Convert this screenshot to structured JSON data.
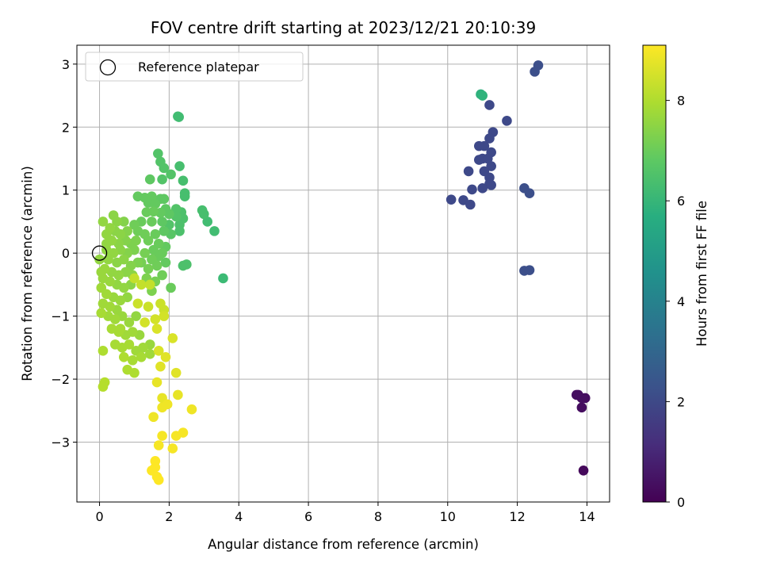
{
  "chart_data": {
    "type": "scatter",
    "title": "FOV centre drift starting at 2023/12/21 20:10:39",
    "xlabel": "Angular distance from reference (arcmin)",
    "ylabel": "Rotation from reference (arcmin)",
    "xlim": [
      -0.65,
      14.65
    ],
    "ylim": [
      -3.95,
      3.3
    ],
    "xticks": [
      0,
      2,
      4,
      6,
      8,
      10,
      12,
      14
    ],
    "yticks": [
      -3,
      -2,
      -1,
      0,
      1,
      2,
      3
    ],
    "grid": true,
    "legend": {
      "placement": "top-left",
      "entries": [
        "Reference platepar"
      ]
    },
    "reference_point": {
      "x": 0,
      "y": 0
    },
    "colorbar": {
      "label": "Hours from first FF file",
      "range": [
        0,
        9.1
      ],
      "ticks": [
        0,
        2,
        4,
        6,
        8
      ],
      "colormap": "viridis"
    },
    "series": [
      {
        "points": [
          [
            13.9,
            -3.45,
            0.2
          ],
          [
            13.85,
            -2.45,
            0.3
          ],
          [
            13.95,
            -2.3,
            0.3
          ],
          [
            13.75,
            -2.25,
            0.3
          ],
          [
            13.85,
            -2.3,
            0.35
          ],
          [
            13.7,
            -2.25,
            0.35
          ],
          [
            12.6,
            2.98,
            2.2
          ],
          [
            12.5,
            2.88,
            2.2
          ],
          [
            12.35,
            0.95,
            2.2
          ],
          [
            12.2,
            1.03,
            2.2
          ],
          [
            12.2,
            -0.28,
            2.2
          ],
          [
            12.35,
            -0.27,
            2.2
          ],
          [
            11.7,
            2.1,
            2.0
          ],
          [
            11.3,
            1.92,
            2.0
          ],
          [
            11.2,
            2.35,
            2.0
          ],
          [
            11.2,
            1.82,
            2.0
          ],
          [
            11.05,
            1.7,
            2.0
          ],
          [
            10.9,
            1.7,
            2.0
          ],
          [
            11.25,
            1.6,
            2.0
          ],
          [
            11.0,
            1.5,
            2.0
          ],
          [
            11.15,
            1.5,
            2.0
          ],
          [
            11.25,
            1.38,
            2.0
          ],
          [
            10.9,
            1.48,
            2.0
          ],
          [
            10.6,
            1.3,
            2.0
          ],
          [
            11.05,
            1.3,
            2.0
          ],
          [
            11.2,
            1.2,
            2.0
          ],
          [
            11.2,
            1.1,
            2.0
          ],
          [
            11.25,
            1.08,
            2.0
          ],
          [
            11.0,
            1.03,
            2.0
          ],
          [
            10.7,
            1.01,
            2.0
          ],
          [
            10.1,
            0.85,
            2.0
          ],
          [
            10.45,
            0.84,
            2.0
          ],
          [
            10.65,
            0.77,
            2.0
          ],
          [
            10.95,
            2.52,
            5.8
          ],
          [
            11.0,
            2.5,
            5.9
          ],
          [
            2.25,
            2.17,
            6.3
          ],
          [
            2.28,
            2.16,
            6.3
          ],
          [
            1.68,
            1.58,
            6.6
          ],
          [
            1.75,
            1.45,
            6.6
          ],
          [
            1.85,
            1.35,
            6.6
          ],
          [
            2.3,
            1.38,
            6.4
          ],
          [
            1.8,
            1.17,
            6.6
          ],
          [
            2.05,
            1.25,
            6.6
          ],
          [
            2.4,
            1.15,
            6.4
          ],
          [
            1.45,
            1.17,
            6.8
          ],
          [
            2.45,
            0.95,
            6.4
          ],
          [
            2.45,
            0.9,
            6.4
          ],
          [
            1.1,
            0.9,
            6.9
          ],
          [
            1.3,
            0.88,
            6.9
          ],
          [
            1.5,
            0.9,
            6.9
          ],
          [
            1.75,
            0.86,
            6.8
          ],
          [
            1.85,
            0.86,
            6.8
          ],
          [
            1.4,
            0.8,
            6.9
          ],
          [
            1.6,
            0.78,
            6.9
          ],
          [
            1.9,
            0.7,
            6.8
          ],
          [
            2.2,
            0.7,
            6.6
          ],
          [
            2.35,
            0.65,
            6.5
          ],
          [
            2.95,
            0.68,
            6.4
          ],
          [
            3.0,
            0.62,
            6.4
          ],
          [
            1.35,
            0.65,
            7.0
          ],
          [
            1.55,
            0.66,
            7.0
          ],
          [
            1.75,
            0.64,
            6.9
          ],
          [
            2.0,
            0.62,
            6.8
          ],
          [
            2.2,
            0.58,
            6.6
          ],
          [
            2.4,
            0.55,
            6.5
          ],
          [
            2.3,
            0.45,
            6.5
          ],
          [
            3.1,
            0.5,
            6.3
          ],
          [
            3.3,
            0.35,
            6.3
          ],
          [
            2.3,
            0.35,
            6.5
          ],
          [
            2.0,
            0.45,
            6.6
          ],
          [
            1.8,
            0.5,
            6.8
          ],
          [
            1.2,
            0.5,
            7.0
          ],
          [
            1.5,
            0.5,
            7.0
          ],
          [
            1.0,
            0.45,
            7.1
          ],
          [
            1.1,
            0.35,
            7.1
          ],
          [
            1.3,
            0.3,
            7.1
          ],
          [
            1.6,
            0.3,
            7.0
          ],
          [
            1.85,
            0.35,
            6.8
          ],
          [
            2.05,
            0.3,
            6.7
          ],
          [
            1.4,
            0.2,
            7.1
          ],
          [
            1.7,
            0.15,
            7.0
          ],
          [
            1.9,
            0.1,
            6.9
          ],
          [
            1.55,
            0.05,
            7.0
          ],
          [
            1.8,
            0.0,
            7.0
          ],
          [
            1.3,
            0.0,
            7.2
          ],
          [
            1.5,
            -0.1,
            7.1
          ],
          [
            1.7,
            -0.05,
            7.0
          ],
          [
            2.4,
            -0.2,
            6.5
          ],
          [
            2.5,
            -0.18,
            6.5
          ],
          [
            1.2,
            -0.15,
            7.2
          ],
          [
            1.4,
            -0.25,
            7.2
          ],
          [
            1.65,
            -0.2,
            7.1
          ],
          [
            1.9,
            -0.15,
            6.9
          ],
          [
            1.35,
            -0.4,
            7.3
          ],
          [
            1.6,
            -0.45,
            7.2
          ],
          [
            1.8,
            -0.35,
            7.1
          ],
          [
            2.05,
            -0.55,
            7.0
          ],
          [
            3.55,
            -0.4,
            6.2
          ],
          [
            1.5,
            -0.6,
            7.3
          ],
          [
            0.1,
            0.5,
            7.6
          ],
          [
            0.3,
            0.4,
            7.6
          ],
          [
            0.4,
            0.6,
            7.5
          ],
          [
            0.5,
            0.5,
            7.5
          ],
          [
            0.7,
            0.5,
            7.4
          ],
          [
            0.2,
            0.3,
            7.6
          ],
          [
            0.45,
            0.35,
            7.5
          ],
          [
            0.6,
            0.3,
            7.5
          ],
          [
            0.8,
            0.35,
            7.4
          ],
          [
            0.35,
            0.2,
            7.6
          ],
          [
            0.55,
            0.15,
            7.5
          ],
          [
            0.75,
            0.2,
            7.4
          ],
          [
            0.9,
            0.15,
            7.3
          ],
          [
            1.05,
            0.2,
            7.3
          ],
          [
            0.2,
            0.05,
            7.6
          ],
          [
            0.4,
            0.0,
            7.6
          ],
          [
            0.6,
            0.05,
            7.5
          ],
          [
            0.8,
            0.0,
            7.4
          ],
          [
            1.0,
            0.05,
            7.3
          ],
          [
            0.25,
            -0.1,
            7.6
          ],
          [
            0.5,
            -0.15,
            7.5
          ],
          [
            0.7,
            -0.1,
            7.5
          ],
          [
            0.9,
            -0.2,
            7.4
          ],
          [
            1.1,
            -0.15,
            7.3
          ],
          [
            0.15,
            -0.25,
            7.7
          ],
          [
            0.35,
            -0.3,
            7.6
          ],
          [
            0.55,
            -0.35,
            7.6
          ],
          [
            0.75,
            -0.3,
            7.5
          ],
          [
            0.95,
            -0.35,
            7.5
          ],
          [
            0.1,
            -0.4,
            7.7
          ],
          [
            0.3,
            -0.45,
            7.7
          ],
          [
            0.5,
            -0.5,
            7.6
          ],
          [
            0.7,
            -0.55,
            7.6
          ],
          [
            0.9,
            -0.5,
            7.5
          ],
          [
            0.05,
            -0.55,
            7.8
          ],
          [
            0.2,
            -0.65,
            7.8
          ],
          [
            0.4,
            -0.7,
            7.7
          ],
          [
            0.6,
            -0.75,
            7.7
          ],
          [
            0.8,
            -0.7,
            7.6
          ],
          [
            0.1,
            -0.8,
            7.8
          ],
          [
            0.3,
            -0.85,
            7.8
          ],
          [
            0.5,
            -0.9,
            7.7
          ],
          [
            0.05,
            -0.95,
            7.9
          ],
          [
            0.25,
            -1.0,
            7.8
          ],
          [
            0.45,
            -1.05,
            7.8
          ],
          [
            0.65,
            -1.0,
            7.7
          ],
          [
            0.85,
            -1.1,
            7.7
          ],
          [
            1.05,
            -1.0,
            7.6
          ],
          [
            0.35,
            -1.2,
            7.9
          ],
          [
            0.55,
            -1.25,
            7.9
          ],
          [
            0.75,
            -1.3,
            7.8
          ],
          [
            0.95,
            -1.25,
            7.8
          ],
          [
            1.15,
            -1.3,
            7.7
          ],
          [
            0.45,
            -1.45,
            7.9
          ],
          [
            0.65,
            -1.5,
            7.9
          ],
          [
            0.85,
            -1.45,
            7.9
          ],
          [
            1.05,
            -1.55,
            7.8
          ],
          [
            1.25,
            -1.5,
            7.8
          ],
          [
            1.45,
            -1.45,
            7.7
          ],
          [
            0.1,
            -1.55,
            8.0
          ],
          [
            0.95,
            -1.7,
            7.9
          ],
          [
            1.2,
            -1.65,
            7.9
          ],
          [
            1.45,
            -1.6,
            7.8
          ],
          [
            0.8,
            -1.85,
            8.0
          ],
          [
            1.0,
            -1.9,
            8.0
          ],
          [
            0.15,
            -2.05,
            8.1
          ],
          [
            0.1,
            -2.12,
            8.1
          ],
          [
            0.7,
            -1.65,
            8.0
          ],
          [
            0.6,
            -1.2,
            7.9
          ],
          [
            0.2,
            0.15,
            7.6
          ],
          [
            0.0,
            -0.1,
            7.6
          ],
          [
            0.05,
            -0.3,
            7.7
          ],
          [
            1.0,
            -0.4,
            8.3
          ],
          [
            1.2,
            -0.5,
            8.3
          ],
          [
            1.45,
            -0.5,
            8.3
          ],
          [
            1.1,
            -0.8,
            8.4
          ],
          [
            1.4,
            -0.85,
            8.4
          ],
          [
            1.75,
            -0.8,
            8.4
          ],
          [
            1.85,
            -0.9,
            8.4
          ],
          [
            1.3,
            -1.1,
            8.5
          ],
          [
            1.6,
            -1.05,
            8.5
          ],
          [
            1.85,
            -1.0,
            8.5
          ],
          [
            1.65,
            -1.2,
            8.6
          ],
          [
            1.7,
            -1.55,
            8.6
          ],
          [
            1.9,
            -1.65,
            8.7
          ],
          [
            1.75,
            -1.8,
            8.7
          ],
          [
            2.1,
            -1.35,
            8.6
          ],
          [
            2.2,
            -1.9,
            8.7
          ],
          [
            1.65,
            -2.05,
            8.8
          ],
          [
            1.8,
            -2.3,
            8.8
          ],
          [
            1.8,
            -2.45,
            8.9
          ],
          [
            1.95,
            -2.4,
            8.9
          ],
          [
            2.25,
            -2.25,
            8.8
          ],
          [
            1.55,
            -2.6,
            8.9
          ],
          [
            2.65,
            -2.48,
            8.9
          ],
          [
            2.4,
            -2.85,
            9.0
          ],
          [
            2.2,
            -2.9,
            9.0
          ],
          [
            1.8,
            -2.9,
            9.0
          ],
          [
            1.7,
            -3.05,
            9.0
          ],
          [
            2.1,
            -3.1,
            9.0
          ],
          [
            1.6,
            -3.3,
            9.1
          ],
          [
            1.6,
            -3.4,
            9.1
          ],
          [
            1.5,
            -3.45,
            9.1
          ],
          [
            1.65,
            -3.55,
            9.1
          ],
          [
            1.7,
            -3.6,
            9.1
          ]
        ]
      }
    ]
  }
}
